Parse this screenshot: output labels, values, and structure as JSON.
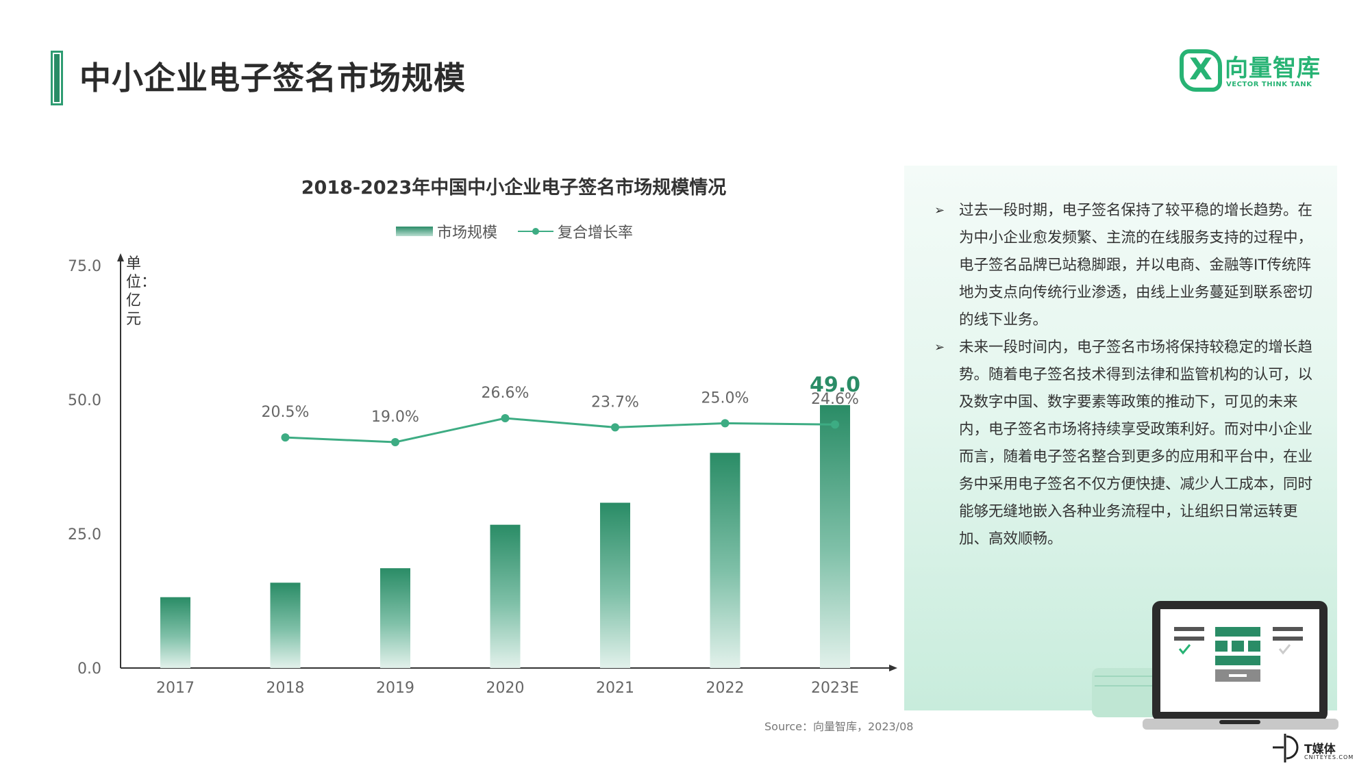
{
  "page": {
    "title": "中小企业电子签名市场规模",
    "source": "Source：向量智库，2023/08"
  },
  "logo": {
    "name_cn": "向量智库",
    "name_en": "VECTOR THINK TANK"
  },
  "watermark": {
    "name_cn": "T媒体",
    "name_en": "CNITEYES.COM"
  },
  "colors": {
    "accent": "#2a8c66",
    "line": "#3dac83",
    "label_highlight": "#2a8c66",
    "panel": "#dff4ea"
  },
  "chart_data": {
    "type": "bar",
    "title": "2018-2023年中国中小企业电子签名市场规模情况",
    "unit_label": "单位：亿元",
    "categories": [
      "2017",
      "2018",
      "2019",
      "2020",
      "2021",
      "2022",
      "2023E"
    ],
    "ylim": [
      0,
      75
    ],
    "yticks": [
      0,
      25,
      50,
      75
    ],
    "ytick_labels": [
      "0.0",
      "25.0",
      "50.0",
      "75.0"
    ],
    "grid": false,
    "legend_position": "top-center",
    "series": [
      {
        "name": "市场规模",
        "type": "bar",
        "values": [
          13.2,
          15.9,
          18.6,
          26.7,
          30.8,
          40.1,
          49.0
        ],
        "data_labels": [
          "",
          "",
          "",
          "",
          "",
          "",
          "49.0"
        ]
      },
      {
        "name": "复合增长率",
        "type": "line",
        "values": [
          null,
          20.5,
          19.0,
          26.6,
          23.7,
          25.0,
          24.6
        ],
        "data_labels": [
          "",
          "20.5%",
          "19.0%",
          "26.6%",
          "23.7%",
          "25.0%",
          "24.6%"
        ]
      }
    ]
  },
  "panel": {
    "bullets": [
      "过去一段时期，电子签名保持了较平稳的增长趋势。在为中小企业愈发频繁、主流的在线服务支持的过程中，电子签名品牌已站稳脚跟，并以电商、金融等IT传统阵地为支点向传统行业渗透，由线上业务蔓延到联系密切的线下业务。",
      "未来一段时间内，电子签名市场将保持较稳定的增长趋势。随着电子签名技术得到法律和监管机构的认可，以及数字中国、数字要素等政策的推动下，可见的未来内，电子签名市场将持续享受政策利好。而对中小企业而言，随着电子签名整合到更多的应用和平台中，在业务中采用电子签名不仅方便快捷、减少人工成本，同时能够无缝地嵌入各种业务流程中，让组织日常运转更加、高效顺畅。"
    ]
  }
}
